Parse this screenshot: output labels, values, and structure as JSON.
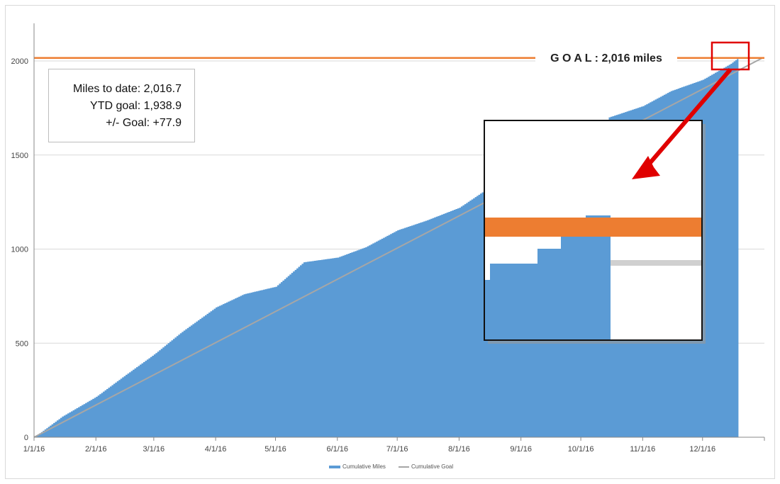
{
  "chart_data": {
    "type": "area",
    "title": "",
    "xlabel": "",
    "ylabel": "",
    "ylim": [
      0,
      2200
    ],
    "y_ticks": [
      "0",
      "500",
      "1000",
      "1500",
      "2000"
    ],
    "x_ticks": [
      "1/1/16",
      "2/1/16",
      "3/1/16",
      "4/1/16",
      "5/1/16",
      "6/1/16",
      "7/1/16",
      "8/1/16",
      "9/1/16",
      "10/1/16",
      "11/1/16",
      "12/1/16"
    ],
    "grid": "horizontal",
    "legend_placement": "bottom",
    "series": [
      {
        "name": "Cumulative Miles",
        "style": "stepped-area",
        "color": "#5b9bd5",
        "x": [
          "2016-01-01",
          "2016-01-15",
          "2016-02-01",
          "2016-02-15",
          "2016-03-01",
          "2016-03-15",
          "2016-04-01",
          "2016-04-15",
          "2016-05-01",
          "2016-05-15",
          "2016-06-01",
          "2016-06-15",
          "2016-07-01",
          "2016-07-15",
          "2016-08-01",
          "2016-08-15",
          "2016-09-01",
          "2016-09-15",
          "2016-10-01",
          "2016-10-15",
          "2016-11-01",
          "2016-11-15",
          "2016-12-01",
          "2016-12-15",
          "2016-12-19"
        ],
        "y": [
          0,
          110,
          215,
          325,
          440,
          560,
          690,
          760,
          800,
          930,
          955,
          1010,
          1100,
          1150,
          1220,
          1320,
          1380,
          1430,
          1490,
          1700,
          1760,
          1840,
          1900,
          1985,
          2016.7
        ]
      },
      {
        "name": "Cumulative Goal",
        "style": "line",
        "color": "#a6a6a6",
        "x": [
          "2016-01-01",
          "2016-12-31"
        ],
        "y": [
          0,
          2016
        ]
      }
    ],
    "goal_line": {
      "value": 2016,
      "color": "#ed7d31",
      "label": "G O A L : 2,016 miles"
    }
  },
  "stats": {
    "miles_to_date": "Miles to date: 2,016.7",
    "ytd_goal": "YTD goal: 1,938.9",
    "plus_minus": "+/- Goal: +77.9"
  },
  "colors": {
    "miles": "#5b9bd5",
    "goal_line": "#ed7d31",
    "cumulative_goal": "#a6a6a6",
    "callout": "#e00000"
  }
}
